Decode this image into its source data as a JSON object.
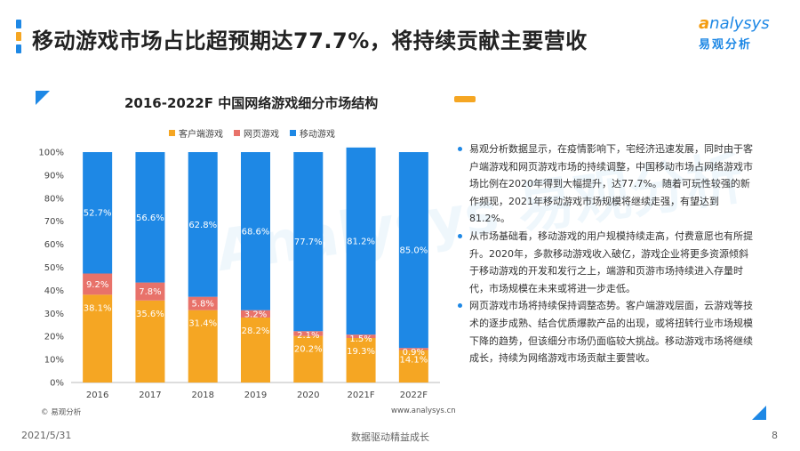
{
  "slide": {
    "title": "移动游戏市场占比超预期达77.7%，将持续贡献主要营收",
    "date": "2021/5/31",
    "footer_center": "数据驱动精益成长",
    "page_number": "8"
  },
  "logo": {
    "top_text": "nalysys",
    "top_prefix": "a",
    "bottom_text": "易观分析"
  },
  "watermark": "Analysys 易观分析",
  "colors": {
    "accent_blue": "#1e88e5",
    "orange": "#f5a623",
    "red": "#e8726a",
    "title_bar": [
      "#1e88e5",
      "#f5a623",
      "#1e88e5"
    ]
  },
  "chart_data": {
    "type": "bar",
    "stacked": true,
    "title": "2016-2022F 中国网络游戏细分市场结构",
    "categories": [
      "2016",
      "2017",
      "2018",
      "2019",
      "2020",
      "2021F",
      "2022F"
    ],
    "series": [
      {
        "name": "客户端游戏",
        "color": "#f5a623",
        "values": [
          38.1,
          35.6,
          31.4,
          28.2,
          20.2,
          19.3,
          14.1
        ],
        "labels": [
          "38.1%",
          "35.6%",
          "31.4%",
          "28.2%",
          "20.2%",
          "19.3%",
          "14.1%"
        ]
      },
      {
        "name": "网页游戏",
        "color": "#e8726a",
        "values": [
          9.2,
          7.8,
          5.8,
          3.2,
          2.1,
          1.5,
          0.9
        ],
        "labels": [
          "9.2%",
          "7.8%",
          "5.8%",
          "3.2%",
          "2.1%",
          "1.5%",
          "0.9%"
        ]
      },
      {
        "name": "移动游戏",
        "color": "#1e88e5",
        "values": [
          52.7,
          56.6,
          62.8,
          68.6,
          77.7,
          81.2,
          85.0
        ],
        "labels": [
          "52.7%",
          "56.6%",
          "62.8%",
          "68.6%",
          "77.7%",
          "81.2%",
          "85.0%"
        ]
      }
    ],
    "yticks": [
      "0%",
      "10%",
      "20%",
      "30%",
      "40%",
      "50%",
      "60%",
      "70%",
      "80%",
      "90%",
      "100%"
    ],
    "ylim": [
      0,
      100
    ],
    "legend_position": "top",
    "source": "© 易观分析",
    "site": "www.analysys.cn"
  },
  "bullets": [
    "易观分析数据显示，在疫情影响下，宅经济迅速发展，同时由于客户端游戏和网页游戏市场的持续调整，中国移动市场占网络游戏市场比例在2020年得到大幅提升，达77.7%。随着可玩性较强的新作频现，2021年移动游戏市场规模将继续走强，有望达到81.2%。",
    "从市场基础看，移动游戏的用户规模持续走高，付费意愿也有所提升。2020年，多款移动游戏收入破亿，游戏企业将更多资源倾斜于移动游戏的开发和发行之上，端游和页游市场持续进入存量时代，市场规模在未来或将进一步走低。",
    "网页游戏市场将持续保持调整态势。客户端游戏层面，云游戏等技术的逐步成熟、结合优质爆款产品的出现，或将扭转行业市场规模下降的趋势，但该细分市场仍面临较大挑战。移动游戏市场将继续成长，持续为网络游戏市场贡献主要营收。"
  ]
}
